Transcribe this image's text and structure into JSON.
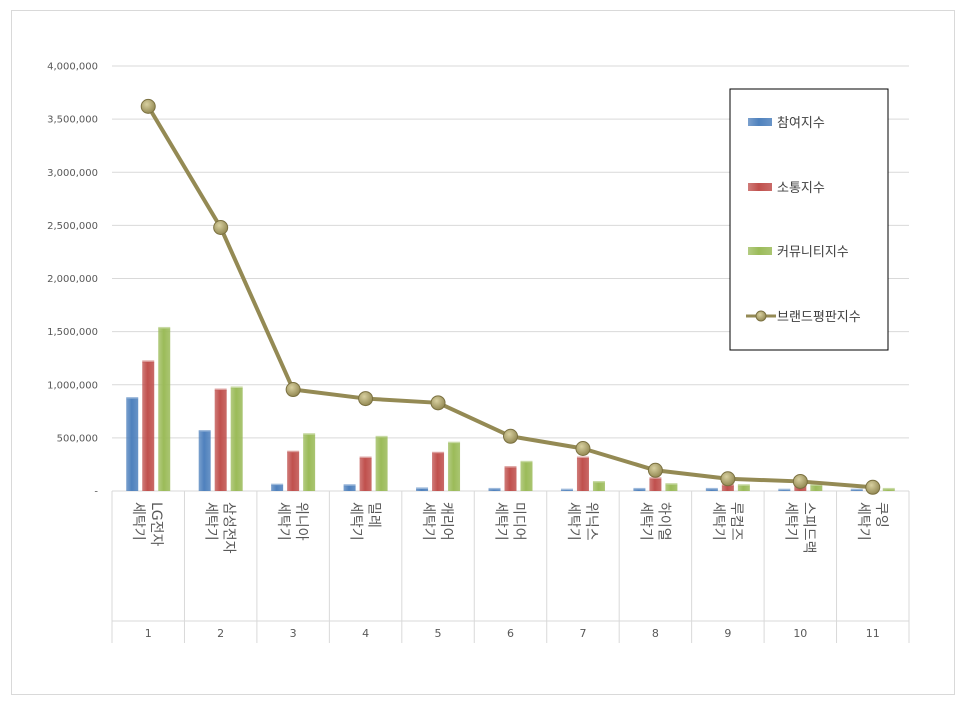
{
  "chart_data": {
    "type": "bar",
    "categories": [
      "LG전자 세탁기",
      "삼성전자 세탁기",
      "위니아 세탁기",
      "밀레 세탁기",
      "캐리어 세탁기",
      "미디어 세탁기",
      "위닉스 세탁기",
      "하이얼 세탁기",
      "루컴즈 세탁기",
      "스피드랙 세탁기",
      "쿠잉 세탁기"
    ],
    "category_lines": [
      [
        "LG전자",
        "세탁기"
      ],
      [
        "삼성전자",
        "세탁기"
      ],
      [
        "위니아",
        "세탁기"
      ],
      [
        "밀레",
        "세탁기"
      ],
      [
        "캐리어",
        "세탁기"
      ],
      [
        "미디어",
        "세탁기"
      ],
      [
        "위닉스",
        "세탁기"
      ],
      [
        "하이얼",
        "세탁기"
      ],
      [
        "루컴즈",
        "세탁기"
      ],
      [
        "스피드랙",
        "세탁기"
      ],
      [
        "쿠잉",
        "세탁기"
      ]
    ],
    "index_labels": [
      "1",
      "2",
      "3",
      "4",
      "5",
      "6",
      "7",
      "8",
      "9",
      "10",
      "11"
    ],
    "series": [
      {
        "name": "참여지수",
        "kind": "bar",
        "color": "#4f81bd",
        "values": [
          870000,
          560000,
          55000,
          50000,
          20000,
          15000,
          8000,
          15000,
          15000,
          5000,
          5000
        ]
      },
      {
        "name": "소통지수",
        "kind": "bar",
        "color": "#c0504d",
        "values": [
          1215000,
          950000,
          365000,
          310000,
          355000,
          220000,
          310000,
          115000,
          50000,
          50000,
          10000
        ]
      },
      {
        "name": "커뮤니티지수",
        "kind": "bar",
        "color": "#9bbb59",
        "values": [
          1530000,
          970000,
          530000,
          505000,
          450000,
          270000,
          80000,
          60000,
          50000,
          50000,
          15000
        ]
      },
      {
        "name": "브랜드평판지수",
        "kind": "line",
        "color": "#948a54",
        "values": [
          3620000,
          2480000,
          955000,
          870000,
          830000,
          515000,
          400000,
          195000,
          115000,
          90000,
          35000
        ]
      }
    ],
    "ylim": [
      0,
      4000000
    ],
    "yticks": [
      0,
      500000,
      1000000,
      1500000,
      2000000,
      2500000,
      3000000,
      3500000,
      4000000
    ],
    "ytick_labels": [
      "-",
      "500,000",
      "1,000,000",
      "1,500,000",
      "2,000,000",
      "2,500,000",
      "3,000,000",
      "3,500,000",
      "4,000,000"
    ],
    "grid": true,
    "legend_position": "right"
  }
}
